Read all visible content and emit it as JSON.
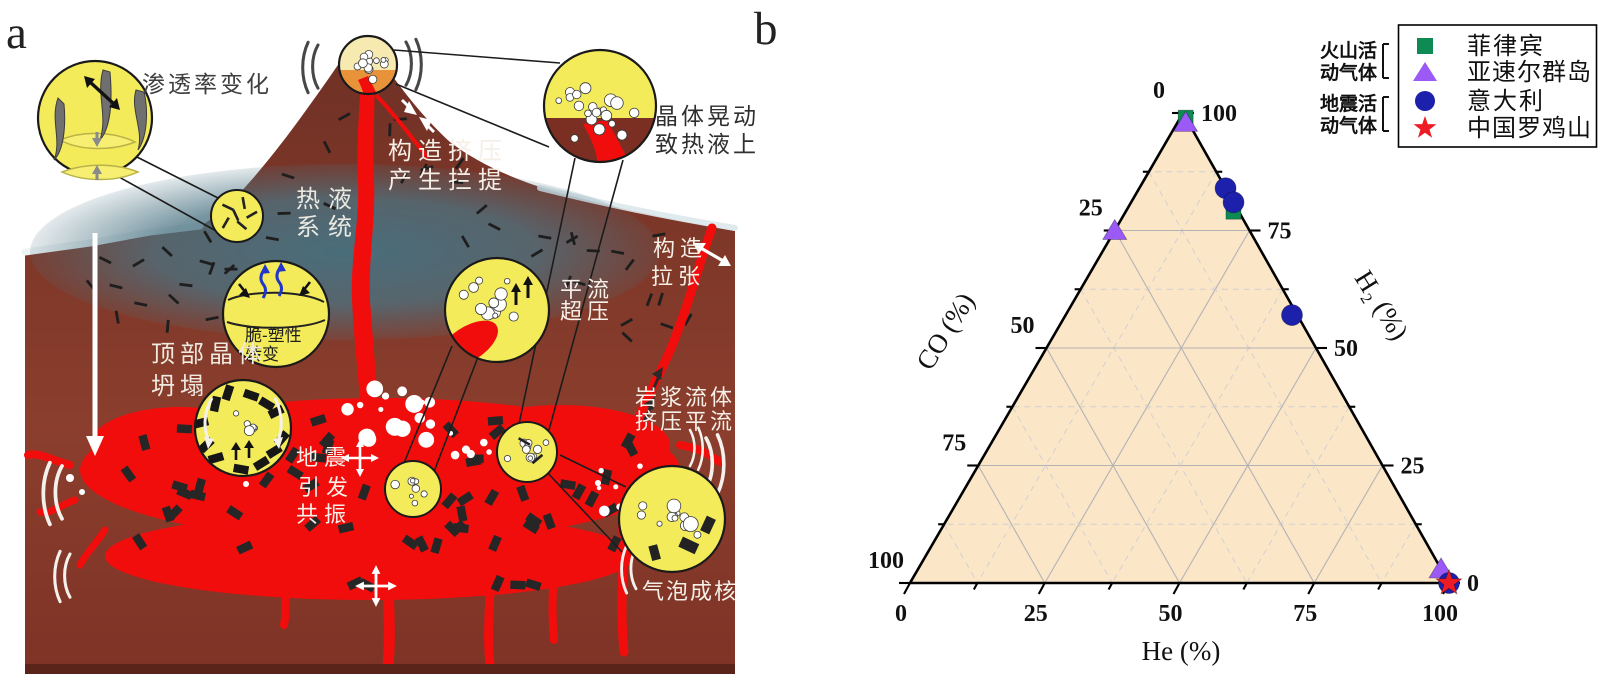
{
  "figure": {
    "panel_a_label": "a",
    "panel_b_label": "b"
  },
  "panel_a": {
    "labels": {
      "permeability": "渗透率变化",
      "crystal_shake_1": "晶体晃动",
      "crystal_shake_2": "致热液上",
      "tectonic_compression_1": "构造挤压",
      "tectonic_compression_2": "产生拦提",
      "hydrothermal_1": "热液",
      "hydrothermal_2": "系统",
      "tectonic_extension_1": "构造",
      "tectonic_extension_2": "拉张",
      "brittle_plastic_1": "脆-塑性",
      "brittle_plastic_2": "转变",
      "advection_overpressure_1": "平流",
      "advection_overpressure_2": "超压",
      "roof_crystal_collapse_1": "顶部晶体",
      "roof_crystal_collapse_2": "坍塌",
      "earthquake_resonance_1": "地震",
      "earthquake_resonance_2": "引发",
      "earthquake_resonance_3": "共振",
      "magma_fluid_1": "岩浆流体",
      "magma_fluid_2": "挤压平流",
      "bubble_nucleation": "气泡成核"
    }
  },
  "panel_b": {
    "legend_groups": [
      {
        "lines": [
          "火山活",
          "动气体"
        ]
      },
      {
        "lines": [
          "地震活",
          "动气体"
        ]
      }
    ]
  },
  "chart_data": {
    "type": "scatter",
    "subtype": "ternary",
    "axes": {
      "left": "CO (%)",
      "right": "H₂ (%)",
      "bottom": "He (%)"
    },
    "ticks": {
      "left": [
        "0",
        "25",
        "50",
        "75",
        "100"
      ],
      "right": [
        "100",
        "75",
        "50",
        "25",
        "0"
      ],
      "bottom": [
        "0",
        "25",
        "50",
        "75",
        "100"
      ]
    },
    "grid": {
      "major_step": 25,
      "minor_step": 12.5
    },
    "plot_fill": "#fbe6c8",
    "series": [
      {
        "name": "菲律宾",
        "group": "火山活动气体",
        "marker": "square",
        "color": "#0e8a54",
        "points": [
          {
            "he": 1,
            "co": 0,
            "h2": 99
          },
          {
            "he": 20,
            "co": 1,
            "h2": 79
          }
        ]
      },
      {
        "name": "亚速尔群岛",
        "group": "火山活动气体",
        "marker": "triangle",
        "color": "#9b59f5",
        "points": [
          {
            "he": 1.5,
            "co": 0.5,
            "h2": 98
          },
          {
            "he": 0,
            "co": 25,
            "h2": 75
          },
          {
            "he": 97,
            "co": 0,
            "h2": 3
          }
        ]
      },
      {
        "name": "意大利",
        "group": "地震活动气体",
        "marker": "circle",
        "color": "#1c20aa",
        "points": [
          {
            "he": 16,
            "co": 0,
            "h2": 84
          },
          {
            "he": 19,
            "co": 0,
            "h2": 81
          },
          {
            "he": 42,
            "co": 1,
            "h2": 57
          },
          {
            "he": 100,
            "co": 0,
            "h2": 0
          }
        ]
      },
      {
        "name": "中国罗鸡山",
        "group": "地震活动气体",
        "marker": "star",
        "color": "#ed1c24",
        "points": [
          {
            "he": 100,
            "co": 0,
            "h2": 0
          }
        ]
      }
    ]
  }
}
